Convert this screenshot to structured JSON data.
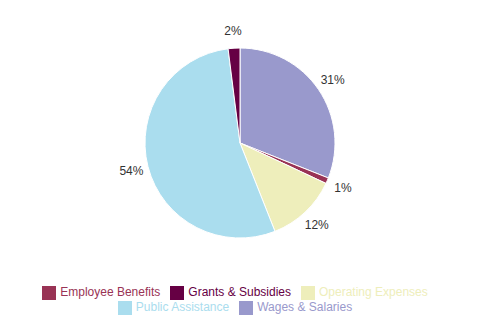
{
  "chart_data": {
    "type": "pie",
    "categories": [
      "Wages & Salaries",
      "Employee Benefits",
      "Operating Expenses",
      "Public Assistance",
      "Grants & Subsidies"
    ],
    "values": [
      31,
      1,
      12,
      54,
      2
    ],
    "value_labels": [
      "31%",
      "1%",
      "12%",
      "54%",
      "2%"
    ],
    "colors": [
      "#9999cc",
      "#993355",
      "#eeeebb",
      "#aaddee",
      "#660044"
    ],
    "data_labels": true,
    "legend": "bottom"
  }
}
